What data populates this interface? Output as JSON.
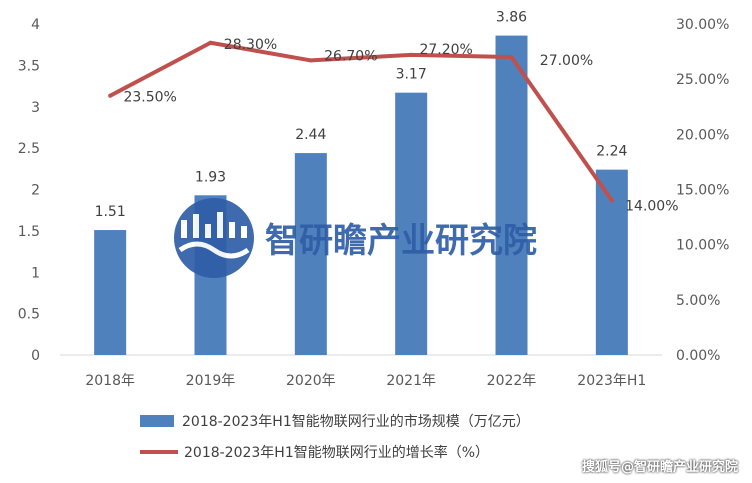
{
  "chart_data": {
    "type": "bar",
    "categories": [
      "2018年",
      "2019年",
      "2020年",
      "2021年",
      "2022年",
      "2023年H1"
    ],
    "series": [
      {
        "name": "2018-2023年H1智能物联网行业的市场规模（万亿元）",
        "type": "bar",
        "values": [
          1.51,
          1.93,
          2.44,
          3.17,
          3.86,
          2.24
        ],
        "labels": [
          "1.51",
          "1.93",
          "2.44",
          "3.17",
          "3.86",
          "2.24"
        ],
        "axis": "left"
      },
      {
        "name": "2018-2023年H1智能物联网行业的增长率（%）",
        "type": "line",
        "values": [
          23.5,
          28.3,
          26.7,
          27.2,
          27.0,
          14.0
        ],
        "labels": [
          "23.50%",
          "28.30%",
          "26.70%",
          "27.20%",
          "27.00%",
          "14.00%"
        ],
        "axis": "right"
      }
    ],
    "y_left": {
      "range": [
        0,
        4
      ],
      "ticks": [
        "0",
        "0.5",
        "1",
        "1.5",
        "2",
        "2.5",
        "3",
        "3.5",
        "4"
      ]
    },
    "y_right": {
      "range": [
        0,
        30
      ],
      "ticks": [
        "0.00%",
        "5.00%",
        "10.00%",
        "15.00%",
        "20.00%",
        "25.00%",
        "30.00%"
      ]
    },
    "grid": false,
    "legend_position": "bottom",
    "colors": {
      "bar": "#4f81bd",
      "line": "#c0504d"
    }
  },
  "watermark": {
    "text": "智研瞻产业研究院"
  },
  "footer": {
    "text": "搜狐号@智研瞻产业研究院"
  }
}
